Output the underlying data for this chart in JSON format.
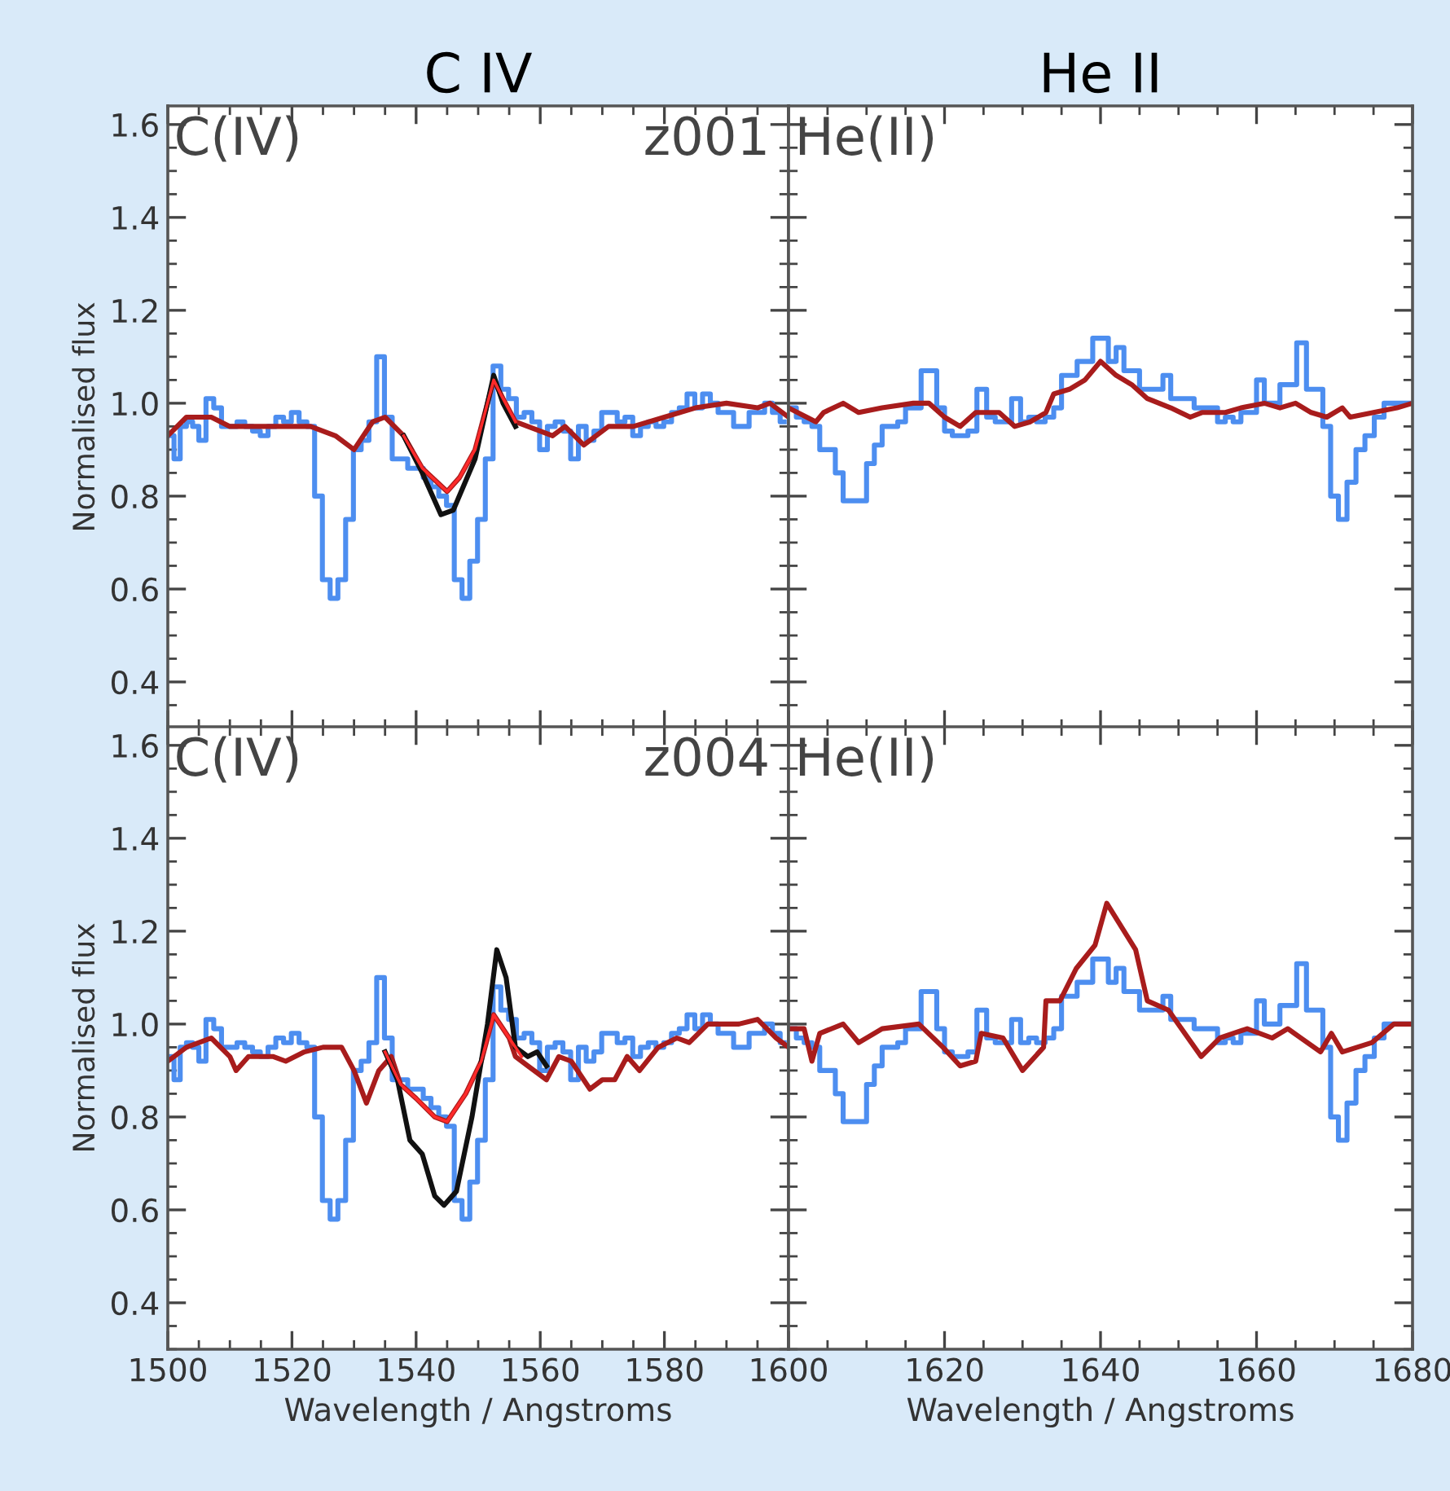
{
  "chart_data": [
    {
      "type": "line",
      "title": "C IV",
      "ylabel": "Normalised flux",
      "annotations": [
        "C(IV)",
        "z001"
      ],
      "xlim": [
        1500,
        1600
      ],
      "xticks": [
        1500,
        1520,
        1540,
        1560,
        1580,
        1600
      ],
      "ylim": [
        0.3,
        1.64
      ],
      "yticks": [
        0.4,
        0.6,
        0.8,
        {
          "value": 1.0,
          "label": "1.0"
        },
        1.2,
        1.4,
        1.6
      ],
      "tick_labels": "y",
      "series": [
        {
          "type": "step",
          "color": "#4d8ef0",
          "x": [
            1500.5,
            1501.5,
            1502.5,
            1503.5,
            1504.5,
            1505.5,
            1506.8,
            1508,
            1509.3,
            1510.5,
            1511.8,
            1513,
            1514.3,
            1515.5,
            1516.8,
            1518,
            1519.3,
            1520.5,
            1521.8,
            1523,
            1524.3,
            1525.5,
            1526.8,
            1528,
            1529.3,
            1530.5,
            1531.8,
            1533,
            1534.3,
            1535.5,
            1536.8,
            1538,
            1539.3,
            1540.5,
            1541.8,
            1543,
            1544.3,
            1545.5,
            1546.8,
            1548,
            1549.3,
            1550.5,
            1551.8,
            1553,
            1554.3,
            1555.5,
            1556.8,
            1558,
            1559.3,
            1560.5,
            1561.8,
            1563,
            1564.3,
            1565.5,
            1566.8,
            1568,
            1569.3,
            1570.5,
            1571.8,
            1573,
            1574.3,
            1575.5,
            1576.8,
            1578,
            1579.3,
            1580.5,
            1581.8,
            1583,
            1584.3,
            1585.5,
            1586.8,
            1588,
            1589.3,
            1590.5,
            1591.8,
            1593,
            1594.3,
            1595.5,
            1596.8,
            1598,
            1599.3
          ],
          "values": [
            0.93,
            0.88,
            0.95,
            0.96,
            0.95,
            0.92,
            1.01,
            0.99,
            0.95,
            0.95,
            0.96,
            0.95,
            0.94,
            0.93,
            0.95,
            0.97,
            0.96,
            0.98,
            0.96,
            0.95,
            0.8,
            0.62,
            0.58,
            0.62,
            0.75,
            0.9,
            0.92,
            0.96,
            1.1,
            0.97,
            0.88,
            0.88,
            0.86,
            0.86,
            0.84,
            0.82,
            0.8,
            0.78,
            0.62,
            0.58,
            0.66,
            0.75,
            0.88,
            1.08,
            1.03,
            1.01,
            0.97,
            0.98,
            0.96,
            0.9,
            0.95,
            0.96,
            0.94,
            0.88,
            0.95,
            0.92,
            0.94,
            0.98,
            0.98,
            0.96,
            0.97,
            0.93,
            0.95,
            0.96,
            0.95,
            0.96,
            0.98,
            0.99,
            1.02,
            0.99,
            1.02,
            1.0,
            0.98,
            0.98,
            0.95,
            0.95,
            0.98,
            0.98,
            1.0,
            0.98,
            0.96
          ]
        },
        {
          "type": "line",
          "color": "#a81c1c",
          "x": [
            1500,
            1503,
            1507,
            1510,
            1515,
            1523,
            1527,
            1530,
            1533,
            1535,
            1538,
            1541,
            1545,
            1547,
            1549.5,
            1552.5,
            1554,
            1556,
            1558,
            1562,
            1564,
            1567,
            1571,
            1575,
            1580,
            1585,
            1590,
            1595,
            1597,
            1600
          ],
          "values": [
            0.93,
            0.97,
            0.97,
            0.95,
            0.95,
            0.95,
            0.93,
            0.9,
            0.96,
            0.97,
            0.93,
            0.86,
            0.81,
            0.84,
            0.9,
            1.05,
            1.01,
            0.96,
            0.95,
            0.93,
            0.95,
            0.91,
            0.95,
            0.95,
            0.97,
            0.99,
            1.0,
            0.99,
            1.0,
            0.97
          ]
        },
        {
          "type": "line",
          "color": "#111111",
          "x": [
            1538,
            1541,
            1544,
            1546,
            1549.5,
            1552.5,
            1554,
            1556
          ],
          "values": [
            0.93,
            0.85,
            0.76,
            0.77,
            0.88,
            1.06,
            1.0,
            0.95
          ]
        },
        {
          "type": "line",
          "color": "#ff2a2a",
          "x": [
            1538,
            1541,
            1545,
            1547,
            1549.5,
            1552.5,
            1554,
            1556
          ],
          "values": [
            0.93,
            0.86,
            0.81,
            0.84,
            0.9,
            1.05,
            1.01,
            0.96
          ]
        }
      ]
    },
    {
      "type": "line",
      "title": "He II",
      "annotations": [
        "He(II)"
      ],
      "xlim": [
        1600,
        1680
      ],
      "xticks": [
        1600,
        1620,
        1640,
        1660,
        1680
      ],
      "ylim": [
        0.3,
        1.64
      ],
      "yticks": [
        0.4,
        0.6,
        0.8,
        1.0,
        1.2,
        1.4,
        1.6
      ],
      "tick_labels": false,
      "series": [
        {
          "type": "step",
          "color": "#4d8ef0",
          "x": [
            1600.5,
            1601.5,
            1602.5,
            1603.5,
            1604.5,
            1605.5,
            1606.5,
            1607.5,
            1608.5,
            1609.5,
            1610.5,
            1611.5,
            1612.5,
            1613.5,
            1614.5,
            1615.5,
            1616.5,
            1617.5,
            1618.5,
            1619.5,
            1620.5,
            1621.5,
            1622.5,
            1623.5,
            1624.8,
            1626,
            1627,
            1628,
            1629.2,
            1630.3,
            1631.3,
            1632.3,
            1633.5,
            1634.5,
            1635.5,
            1636.5,
            1637.5,
            1638.5,
            1639.5,
            1640.5,
            1641.5,
            1642.5,
            1643.5,
            1644.5,
            1645.5,
            1646.5,
            1647.5,
            1648.5,
            1649.5,
            1650.5,
            1651.5,
            1652.5,
            1653.5,
            1654.5,
            1655.5,
            1656.5,
            1657.5,
            1658.5,
            1659.5,
            1660.5,
            1661.5,
            1662.5,
            1663.5,
            1664.5,
            1665.8,
            1667,
            1668,
            1669,
            1670,
            1671,
            1672.2,
            1673.3,
            1674.5,
            1675.7,
            1677,
            1678.3,
            1679.5
          ],
          "values": [
            0.99,
            0.97,
            0.96,
            0.95,
            0.9,
            0.9,
            0.85,
            0.79,
            0.79,
            0.79,
            0.87,
            0.91,
            0.95,
            0.95,
            0.96,
            0.99,
            0.99,
            1.07,
            1.07,
            0.99,
            0.94,
            0.93,
            0.93,
            0.94,
            1.03,
            0.97,
            0.96,
            0.96,
            1.01,
            0.96,
            0.97,
            0.96,
            0.97,
            0.99,
            1.06,
            1.06,
            1.09,
            1.09,
            1.14,
            1.14,
            1.09,
            1.12,
            1.07,
            1.07,
            1.03,
            1.03,
            1.03,
            1.06,
            1.01,
            1.01,
            1.01,
            0.99,
            0.99,
            0.99,
            0.96,
            0.97,
            0.96,
            0.98,
            0.98,
            1.05,
            1.0,
            1.0,
            1.04,
            1.04,
            1.13,
            1.03,
            1.03,
            0.95,
            0.8,
            0.75,
            0.83,
            0.9,
            0.93,
            0.97,
            1.0,
            1.0,
            1.0
          ]
        },
        {
          "type": "line",
          "color": "#a81c1c",
          "x": [
            1600,
            1603.5,
            1604.5,
            1607,
            1609,
            1612,
            1616,
            1618,
            1620,
            1622,
            1624,
            1627,
            1629,
            1631,
            1633,
            1634,
            1636,
            1638,
            1640,
            1642,
            1644,
            1646,
            1649,
            1651.5,
            1653,
            1656,
            1658,
            1661,
            1663,
            1665,
            1667,
            1669,
            1671,
            1672,
            1675,
            1678,
            1680
          ],
          "values": [
            0.99,
            0.96,
            0.98,
            1.0,
            0.98,
            0.99,
            1.0,
            1.0,
            0.97,
            0.95,
            0.98,
            0.98,
            0.95,
            0.96,
            0.98,
            1.02,
            1.03,
            1.05,
            1.09,
            1.06,
            1.04,
            1.01,
            0.99,
            0.97,
            0.98,
            0.98,
            0.99,
            1.0,
            0.99,
            1.0,
            0.98,
            0.97,
            0.99,
            0.97,
            0.98,
            0.99,
            1.0
          ]
        }
      ]
    },
    {
      "type": "line",
      "ylabel": "Normalised flux",
      "xlabel": "Wavelength / Angstroms",
      "annotations": [
        "C(IV)",
        "z004"
      ],
      "xlim": [
        1500,
        1600
      ],
      "xticks": [
        1500,
        1520,
        1540,
        1560,
        1580,
        1600
      ],
      "ylim": [
        0.3,
        1.64
      ],
      "yticks": [
        0.4,
        0.6,
        0.8,
        {
          "value": 1.0,
          "label": "1.0"
        },
        1.2,
        1.4,
        1.6
      ],
      "series": [
        {
          "type": "step",
          "color": "#4d8ef0",
          "x": [
            1500.5,
            1501.5,
            1502.5,
            1503.5,
            1504.5,
            1505.5,
            1506.8,
            1508,
            1509.3,
            1510.5,
            1511.8,
            1513,
            1514.3,
            1515.5,
            1516.8,
            1518,
            1519.3,
            1520.5,
            1521.8,
            1523,
            1524.3,
            1525.5,
            1526.8,
            1528,
            1529.3,
            1530.5,
            1531.8,
            1533,
            1534.3,
            1535.5,
            1536.8,
            1538,
            1539.3,
            1540.5,
            1541.8,
            1543,
            1544.3,
            1545.5,
            1546.8,
            1548,
            1549.3,
            1550.5,
            1551.8,
            1553,
            1554.3,
            1555.5,
            1556.8,
            1558,
            1559.3,
            1560.5,
            1561.8,
            1563,
            1564.3,
            1565.5,
            1566.8,
            1568,
            1569.3,
            1570.5,
            1571.8,
            1573,
            1574.3,
            1575.5,
            1576.8,
            1578,
            1579.3,
            1580.5,
            1581.8,
            1583,
            1584.3,
            1585.5,
            1586.8,
            1588,
            1589.3,
            1590.5,
            1591.8,
            1593,
            1594.3,
            1595.5,
            1596.8,
            1598,
            1599.3
          ],
          "values": [
            0.93,
            0.88,
            0.95,
            0.96,
            0.95,
            0.92,
            1.01,
            0.99,
            0.95,
            0.95,
            0.96,
            0.95,
            0.94,
            0.93,
            0.95,
            0.97,
            0.96,
            0.98,
            0.96,
            0.95,
            0.8,
            0.62,
            0.58,
            0.62,
            0.75,
            0.9,
            0.92,
            0.96,
            1.1,
            0.97,
            0.88,
            0.88,
            0.86,
            0.86,
            0.84,
            0.82,
            0.8,
            0.78,
            0.62,
            0.58,
            0.66,
            0.75,
            0.88,
            1.08,
            1.03,
            1.01,
            0.97,
            0.98,
            0.96,
            0.9,
            0.95,
            0.96,
            0.94,
            0.88,
            0.95,
            0.92,
            0.94,
            0.98,
            0.98,
            0.96,
            0.97,
            0.93,
            0.95,
            0.96,
            0.95,
            0.96,
            0.98,
            0.99,
            1.02,
            0.99,
            1.02,
            1.0,
            0.98,
            0.98,
            0.95,
            0.95,
            0.98,
            0.98,
            1.0,
            0.98,
            0.96
          ]
        },
        {
          "type": "line",
          "color": "#a81c1c",
          "x": [
            1500,
            1503,
            1507,
            1510,
            1511,
            1513,
            1517,
            1519,
            1522,
            1525,
            1528,
            1530,
            1532,
            1534,
            1536,
            1537.5,
            1540,
            1543,
            1545,
            1548,
            1550.5,
            1552.5,
            1555,
            1556,
            1558,
            1561,
            1563,
            1565,
            1568,
            1570,
            1572,
            1574,
            1576,
            1579,
            1582,
            1584,
            1587,
            1592,
            1595,
            1598,
            1600
          ],
          "values": [
            0.92,
            0.95,
            0.97,
            0.93,
            0.9,
            0.93,
            0.93,
            0.92,
            0.94,
            0.95,
            0.95,
            0.9,
            0.83,
            0.9,
            0.93,
            0.87,
            0.84,
            0.8,
            0.79,
            0.85,
            0.92,
            1.02,
            0.97,
            0.93,
            0.91,
            0.88,
            0.93,
            0.92,
            0.86,
            0.88,
            0.88,
            0.93,
            0.9,
            0.95,
            0.97,
            0.96,
            1.0,
            1.0,
            1.01,
            0.97,
            0.95
          ]
        },
        {
          "type": "line",
          "color": "#111111",
          "x": [
            1535,
            1537,
            1539,
            1541,
            1543,
            1544.5,
            1546.5,
            1549,
            1551.5,
            1553,
            1554.5,
            1556,
            1558,
            1559.5,
            1561
          ],
          "values": [
            0.94,
            0.88,
            0.75,
            0.72,
            0.63,
            0.61,
            0.64,
            0.8,
            1.0,
            1.16,
            1.1,
            0.95,
            0.93,
            0.94,
            0.91
          ]
        },
        {
          "type": "line",
          "color": "#ff2a2a",
          "x": [
            1535,
            1537.5,
            1540,
            1543,
            1545,
            1548,
            1550.5,
            1552.5,
            1555,
            1557
          ],
          "values": [
            0.94,
            0.87,
            0.84,
            0.8,
            0.79,
            0.85,
            0.92,
            1.02,
            0.97,
            0.93
          ]
        }
      ]
    },
    {
      "type": "line",
      "xlabel": "Wavelength / Angstroms",
      "annotations": [
        "He(II)"
      ],
      "xlim": [
        1600,
        1680
      ],
      "xticks": [
        {
          "value": 1600,
          "label": null
        },
        1620,
        1640,
        1660,
        1680
      ],
      "ylim": [
        0.3,
        1.64
      ],
      "yticks": [
        0.4,
        0.6,
        0.8,
        1.0,
        1.2,
        1.4,
        1.6
      ],
      "tick_labels": "x",
      "series": [
        {
          "type": "step",
          "color": "#4d8ef0",
          "x": [
            1600.5,
            1601.5,
            1602.5,
            1603.5,
            1604.5,
            1605.5,
            1606.5,
            1607.5,
            1608.5,
            1609.5,
            1610.5,
            1611.5,
            1612.5,
            1613.5,
            1614.5,
            1615.5,
            1616.5,
            1617.5,
            1618.5,
            1619.5,
            1620.5,
            1621.5,
            1622.5,
            1623.5,
            1624.8,
            1626,
            1627,
            1628,
            1629.2,
            1630.3,
            1631.3,
            1632.3,
            1633.5,
            1634.5,
            1635.5,
            1636.5,
            1637.5,
            1638.5,
            1639.5,
            1640.5,
            1641.5,
            1642.5,
            1643.5,
            1644.5,
            1645.5,
            1646.5,
            1647.5,
            1648.5,
            1649.5,
            1650.5,
            1651.5,
            1652.5,
            1653.5,
            1654.5,
            1655.5,
            1656.5,
            1657.5,
            1658.5,
            1659.5,
            1660.5,
            1661.5,
            1662.5,
            1663.5,
            1664.5,
            1665.8,
            1667,
            1668,
            1669,
            1670,
            1671,
            1672.2,
            1673.3,
            1674.5,
            1675.7,
            1677,
            1678.3,
            1679.5
          ],
          "values": [
            0.99,
            0.97,
            0.96,
            0.95,
            0.9,
            0.9,
            0.85,
            0.79,
            0.79,
            0.79,
            0.87,
            0.91,
            0.95,
            0.95,
            0.96,
            0.99,
            0.99,
            1.07,
            1.07,
            0.99,
            0.94,
            0.93,
            0.93,
            0.94,
            1.03,
            0.97,
            0.96,
            0.96,
            1.01,
            0.96,
            0.97,
            0.96,
            0.97,
            0.99,
            1.06,
            1.06,
            1.09,
            1.09,
            1.14,
            1.14,
            1.09,
            1.12,
            1.07,
            1.07,
            1.03,
            1.03,
            1.03,
            1.06,
            1.01,
            1.01,
            1.01,
            0.99,
            0.99,
            0.99,
            0.96,
            0.97,
            0.96,
            0.98,
            0.98,
            1.05,
            1.0,
            1.0,
            1.04,
            1.04,
            1.13,
            1.03,
            1.03,
            0.95,
            0.8,
            0.75,
            0.83,
            0.9,
            0.93,
            0.97,
            1.0,
            1.0,
            1.0
          ]
        },
        {
          "type": "line",
          "color": "#a81c1c",
          "x": [
            1600,
            1602,
            1603,
            1604,
            1607,
            1609,
            1612,
            1616.7,
            1619.8,
            1622,
            1624,
            1624.7,
            1627.5,
            1630,
            1632.7,
            1633,
            1634.8,
            1636.9,
            1639.3,
            1640.8,
            1644.5,
            1646,
            1648.7,
            1652.9,
            1655.3,
            1657,
            1658.8,
            1662,
            1664,
            1668.2,
            1669.6,
            1671,
            1674.8,
            1677.6,
            1680
          ],
          "values": [
            0.99,
            0.99,
            0.92,
            0.98,
            1.0,
            0.96,
            0.99,
            1.0,
            0.95,
            0.91,
            0.92,
            0.98,
            0.97,
            0.9,
            0.95,
            1.05,
            1.05,
            1.12,
            1.17,
            1.26,
            1.16,
            1.05,
            1.03,
            0.93,
            0.97,
            0.98,
            0.99,
            0.97,
            0.99,
            0.94,
            0.98,
            0.94,
            0.96,
            1.0,
            1.0
          ]
        }
      ]
    }
  ]
}
